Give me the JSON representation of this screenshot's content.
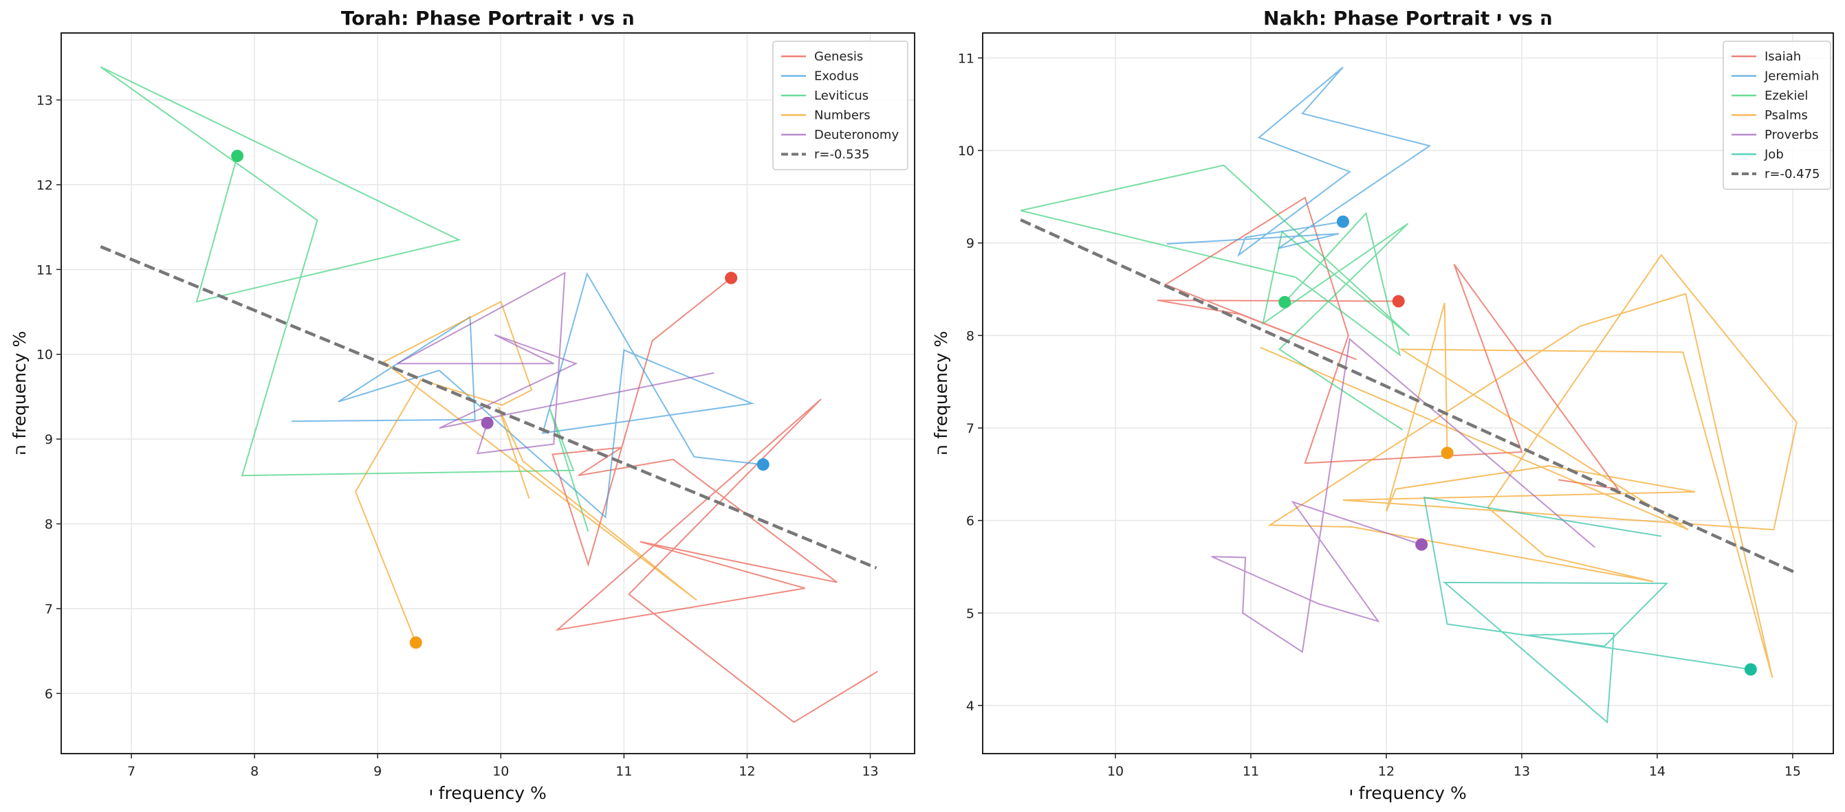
{
  "chart_data": [
    {
      "type": "line",
      "title": "Torah: Phase Portrait י vs ה",
      "xlabel": "י frequency %",
      "ylabel": "ה frequency %",
      "xlim": [
        6.43,
        13.36
      ],
      "ylim": [
        5.29,
        13.79
      ],
      "xticks": [
        7,
        8,
        9,
        10,
        11,
        12,
        13
      ],
      "yticks": [
        6,
        7,
        8,
        9,
        10,
        11,
        12,
        13
      ],
      "grid": true,
      "legend_position": "top-right",
      "series": [
        {
          "name": "Genesis",
          "color": "#e74c3c",
          "points": [
            [
              13.06,
              6.26
            ],
            [
              12.38,
              5.66
            ],
            [
              11.04,
              7.17
            ],
            [
              12.6,
              9.47
            ],
            [
              10.46,
              6.75
            ],
            [
              12.47,
              7.24
            ],
            [
              11.13,
              7.79
            ],
            [
              12.73,
              7.31
            ],
            [
              11.4,
              8.76
            ],
            [
              10.63,
              8.57
            ],
            [
              10.98,
              8.9
            ],
            [
              10.42,
              8.82
            ],
            [
              10.71,
              7.52
            ],
            [
              11.23,
              10.16
            ],
            [
              11.87,
              10.9
            ]
          ]
        },
        {
          "name": "Exodus",
          "color": "#3498db",
          "points": [
            [
              8.3,
              9.21
            ],
            [
              9.79,
              9.23
            ],
            [
              9.75,
              10.44
            ],
            [
              8.68,
              9.44
            ],
            [
              9.5,
              9.81
            ],
            [
              10.85,
              8.08
            ],
            [
              11.0,
              10.05
            ],
            [
              12.04,
              9.42
            ],
            [
              10.34,
              9.07
            ],
            [
              10.7,
              10.95
            ],
            [
              11.57,
              8.79
            ],
            [
              12.13,
              8.7
            ]
          ]
        },
        {
          "name": "Leviticus",
          "color": "#2ecc71",
          "points": [
            [
              10.71,
              7.91
            ],
            [
              10.4,
              9.35
            ],
            [
              10.59,
              8.63
            ],
            [
              7.9,
              8.57
            ],
            [
              8.51,
              11.58
            ],
            [
              6.75,
              13.39
            ],
            [
              9.66,
              11.35
            ],
            [
              7.53,
              10.62
            ],
            [
              7.86,
              12.34
            ]
          ]
        },
        {
          "name": "Numbers",
          "color": "#f39c12",
          "points": [
            [
              10.23,
              8.3
            ],
            [
              9.98,
              9.38
            ],
            [
              10.18,
              8.74
            ],
            [
              11.59,
              7.1
            ],
            [
              9.05,
              9.91
            ],
            [
              10.0,
              10.62
            ],
            [
              10.25,
              9.58
            ],
            [
              10.01,
              9.4
            ],
            [
              9.35,
              9.7
            ],
            [
              8.82,
              8.38
            ],
            [
              9.31,
              6.6
            ]
          ]
        },
        {
          "name": "Deuteronomy",
          "color": "#9b59b6",
          "points": [
            [
              11.73,
              9.78
            ],
            [
              9.5,
              9.13
            ],
            [
              10.61,
              9.89
            ],
            [
              9.95,
              10.23
            ],
            [
              10.43,
              9.89
            ],
            [
              9.16,
              9.89
            ],
            [
              10.52,
              10.96
            ],
            [
              10.43,
              8.94
            ],
            [
              9.81,
              8.83
            ],
            [
              9.89,
              9.19
            ]
          ]
        }
      ],
      "fit": {
        "name": "r=-0.535",
        "color": "#777777",
        "x": [
          6.75,
          13.05
        ],
        "y": [
          11.27,
          7.48
        ]
      }
    },
    {
      "type": "line",
      "title": "Nakh: Phase Portrait י vs ה",
      "xlabel": "י frequency %",
      "ylabel": "ה frequency %",
      "xlim": [
        9.02,
        15.3
      ],
      "ylim": [
        3.48,
        11.27
      ],
      "xticks": [
        10,
        11,
        12,
        13,
        14,
        15
      ],
      "yticks": [
        4,
        5,
        6,
        7,
        8,
        9,
        10,
        11
      ],
      "grid": true,
      "legend_position": "top-right",
      "series": [
        {
          "name": "Isaiah",
          "color": "#e74c3c",
          "points": [
            [
              13.27,
              6.44
            ],
            [
              13.71,
              6.34
            ],
            [
              12.5,
              8.77
            ],
            [
              13.0,
              6.74
            ],
            [
              11.4,
              6.62
            ],
            [
              11.72,
              8.0
            ],
            [
              11.4,
              9.49
            ],
            [
              10.37,
              8.55
            ],
            [
              11.78,
              7.74
            ],
            [
              10.92,
              8.23
            ],
            [
              10.31,
              8.38
            ],
            [
              12.09,
              8.37
            ]
          ]
        },
        {
          "name": "Jeremiah",
          "color": "#3498db",
          "points": [
            [
              10.38,
              8.99
            ],
            [
              11.65,
              9.1
            ],
            [
              11.2,
              8.94
            ],
            [
              12.32,
              10.05
            ],
            [
              11.38,
              10.4
            ],
            [
              11.68,
              10.9
            ],
            [
              11.06,
              10.14
            ],
            [
              11.73,
              9.77
            ],
            [
              10.91,
              8.87
            ],
            [
              10.96,
              9.06
            ],
            [
              11.68,
              9.23
            ]
          ]
        },
        {
          "name": "Ezekiel",
          "color": "#2ecc71",
          "points": [
            [
              12.12,
              6.98
            ],
            [
              11.21,
              7.85
            ],
            [
              12.16,
              9.21
            ],
            [
              11.09,
              8.13
            ],
            [
              11.23,
              9.12
            ],
            [
              12.17,
              8.0
            ],
            [
              10.8,
              9.84
            ],
            [
              9.3,
              9.35
            ],
            [
              11.33,
              8.63
            ],
            [
              12.1,
              7.79
            ],
            [
              11.85,
              9.32
            ],
            [
              11.25,
              8.36
            ]
          ]
        },
        {
          "name": "Psalms",
          "color": "#f39c12",
          "points": [
            [
              11.07,
              7.87
            ],
            [
              14.23,
              5.9
            ],
            [
              12.11,
              7.85
            ],
            [
              14.19,
              7.82
            ],
            [
              14.85,
              4.3
            ],
            [
              14.21,
              8.45
            ],
            [
              13.43,
              8.1
            ],
            [
              11.14,
              5.95
            ],
            [
              11.75,
              5.93
            ],
            [
              13.97,
              5.34
            ],
            [
              13.17,
              5.62
            ],
            [
              12.75,
              6.14
            ],
            [
              14.03,
              8.87
            ],
            [
              15.03,
              7.06
            ],
            [
              14.86,
              5.9
            ],
            [
              11.68,
              6.22
            ],
            [
              14.28,
              6.31
            ],
            [
              13.2,
              6.59
            ],
            [
              12.07,
              6.34
            ],
            [
              12.0,
              6.1
            ],
            [
              12.43,
              8.35
            ],
            [
              12.45,
              6.73
            ]
          ]
        },
        {
          "name": "Proverbs",
          "color": "#9b59b6",
          "points": [
            [
              13.54,
              5.71
            ],
            [
              11.73,
              7.96
            ],
            [
              11.38,
              4.58
            ],
            [
              10.94,
              5.0
            ],
            [
              10.96,
              5.6
            ],
            [
              10.71,
              5.61
            ],
            [
              11.5,
              5.1
            ],
            [
              11.94,
              4.91
            ],
            [
              11.31,
              6.2
            ],
            [
              12.26,
              5.74
            ]
          ]
        },
        {
          "name": "Job",
          "color": "#1abc9c",
          "points": [
            [
              14.03,
              5.83
            ],
            [
              12.28,
              6.25
            ],
            [
              12.45,
              4.88
            ],
            [
              13.61,
              4.64
            ],
            [
              14.07,
              5.32
            ],
            [
              12.43,
              5.33
            ],
            [
              13.63,
              3.82
            ],
            [
              13.68,
              4.78
            ],
            [
              13.03,
              4.76
            ],
            [
              14.69,
              4.39
            ]
          ]
        }
      ],
      "fit": {
        "name": "r=-0.475",
        "color": "#777777",
        "x": [
          9.3,
          15.03
        ],
        "y": [
          9.25,
          5.43
        ]
      }
    }
  ]
}
